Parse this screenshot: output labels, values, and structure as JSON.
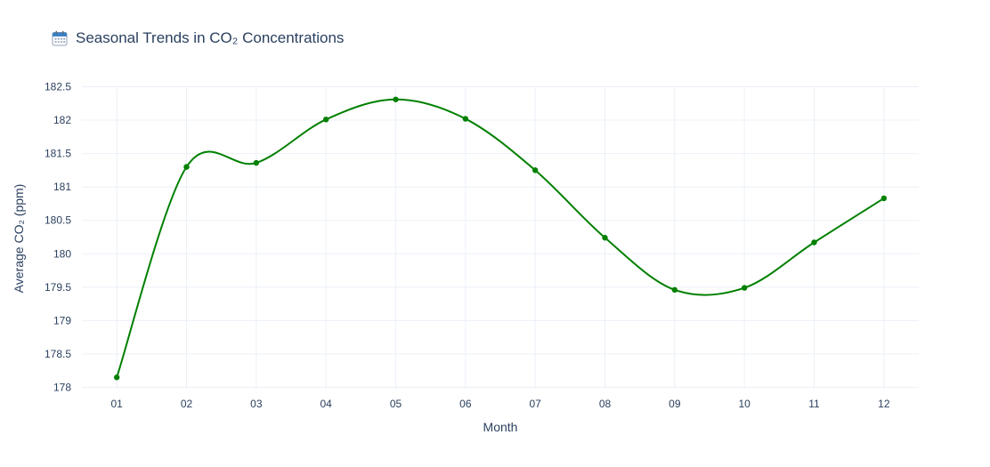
{
  "title": {
    "icon": "calendar-icon",
    "text": "Seasonal Trends in CO₂ Concentrations"
  },
  "chart_data": {
    "type": "line",
    "title": "Seasonal Trends in CO₂ Concentrations",
    "xlabel": "Month",
    "ylabel": "Average CO₂ (ppm)",
    "categories": [
      "01",
      "02",
      "03",
      "04",
      "05",
      "06",
      "07",
      "08",
      "09",
      "10",
      "11",
      "12"
    ],
    "series": [
      {
        "values": [
          178.15,
          181.3,
          181.36,
          182.01,
          182.31,
          182.02,
          181.25,
          180.24,
          179.46,
          179.49,
          180.17,
          180.83
        ],
        "color": "#008000",
        "line_shape": "spline",
        "markers": true
      }
    ],
    "y_ticks": [
      178,
      178.5,
      179,
      179.5,
      180,
      180.5,
      181,
      181.5,
      182,
      182.5
    ],
    "y_tick_labels": [
      "178",
      "178.5",
      "179",
      "179.5",
      "180",
      "180.5",
      "181",
      "181.5",
      "182",
      "182.5"
    ],
    "ylim": [
      177.98,
      182.48
    ],
    "grid": true,
    "colors": {
      "axis_text": "#2a3f5f",
      "grid": "#ebf0f8",
      "line": "#008000"
    }
  }
}
